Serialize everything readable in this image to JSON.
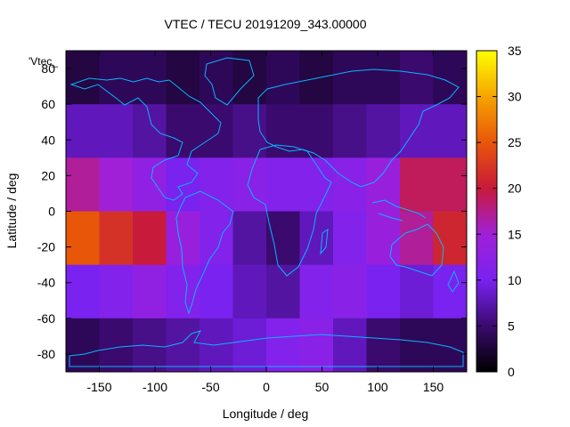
{
  "chart_data": {
    "type": "heatmap",
    "title": "VTEC / TECU 20191209_343.00000",
    "key_label": "'Vtec_",
    "xlabel": "Longitude / deg",
    "ylabel": "Latitude / deg",
    "xlim": [
      -180,
      180
    ],
    "ylim": [
      -90,
      90
    ],
    "xticks": [
      -150,
      -100,
      -50,
      0,
      50,
      100,
      150
    ],
    "yticks": [
      -80,
      -60,
      -40,
      -20,
      0,
      20,
      40,
      60,
      80
    ],
    "colorbar": {
      "range": [
        0,
        35
      ],
      "ticks": [
        0,
        5,
        10,
        15,
        20,
        25,
        30,
        35
      ],
      "colors": [
        "#000000",
        "#3a0a6e",
        "#7a22f0",
        "#a020d8",
        "#c81a3a",
        "#e8560a",
        "#f5a400",
        "#ffff00"
      ]
    },
    "grid": "6 x 12 cells, latitude rows from 90 to -90, longitude columns from -180 to 180, cell size 30 deg",
    "values": [
      [
        3,
        4,
        4,
        3,
        4,
        3,
        4,
        3,
        4,
        4,
        5,
        4
      ],
      [
        8,
        8,
        7,
        5,
        5,
        6,
        5,
        5,
        6,
        7,
        8,
        8
      ],
      [
        17,
        15,
        13,
        10,
        11,
        12,
        11,
        11,
        12,
        14,
        19,
        19
      ],
      [
        25,
        22,
        20,
        14,
        11,
        7,
        5,
        8,
        11,
        14,
        17,
        21
      ],
      [
        10,
        11,
        13,
        11,
        10,
        8,
        7,
        11,
        12,
        10,
        9,
        10
      ],
      [
        4,
        5,
        6,
        7,
        8,
        9,
        11,
        12,
        8,
        5,
        4,
        4
      ]
    ]
  }
}
